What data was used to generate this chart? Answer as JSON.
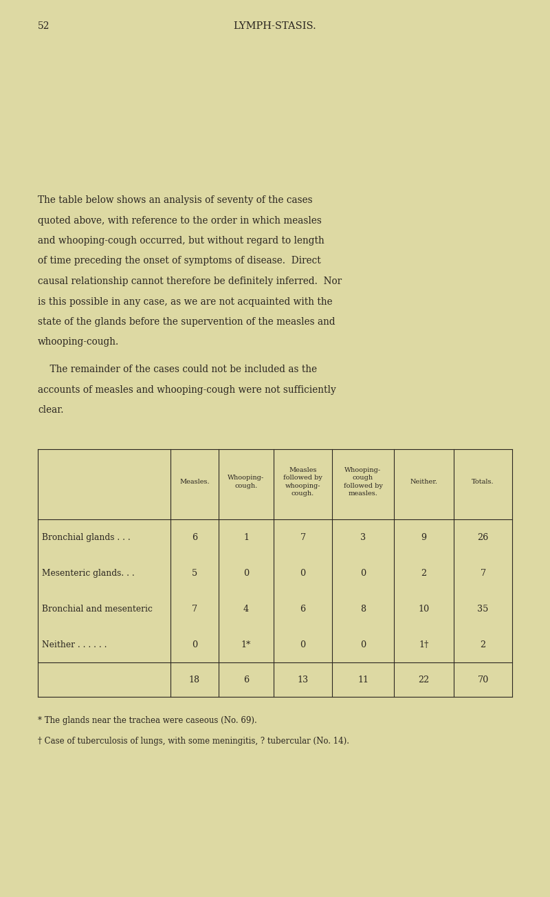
{
  "bg_color": "#ddd9a3",
  "page_number": "52",
  "header_title": "LYMPH-STASIS.",
  "body_paragraphs": [
    [
      "The table below shows an analysis of seventy of the cases",
      "quoted above, with reference to the order in which measles",
      "and whooping-cough occurred, but without regard to length",
      "of time preceding the onset of symptoms of disease.  Direct",
      "causal relationship cannot therefore be definitely inferred.  Nor",
      "is this possible in any case, as we are not acquainted with the",
      "state of the glands before the supervention of the measles and",
      "whooping-cough."
    ],
    [
      "    The remainder of the cases could not be included as the",
      "accounts of measles and whooping-cough were not sufficiently",
      "clear."
    ]
  ],
  "col_headers": [
    "Measles.",
    "Whooping-\ncough.",
    "Measles\nfollowed by\nwhooping-\ncough.",
    "Whooping-\ncough\nfollowed by\nmeasles.",
    "Neither.",
    "Totals."
  ],
  "row_labels": [
    "Bronchial glands . . .",
    "Mesenteric glands. . .",
    "Bronchial and mesenteric",
    "Neither . . . . . ."
  ],
  "table_data": [
    [
      "6",
      "1",
      "7",
      "3",
      "9",
      "26"
    ],
    [
      "5",
      "0",
      "0",
      "0",
      "2",
      "7"
    ],
    [
      "7",
      "4",
      "6",
      "8",
      "10",
      "35"
    ],
    [
      "0",
      "1*",
      "0",
      "0",
      "1†",
      "2"
    ]
  ],
  "totals_row": [
    "18",
    "6",
    "13",
    "11",
    "22",
    "70"
  ],
  "footnote1": "* The glands near the trachea were caseous (No. 69).",
  "footnote2": "† Case of tuberculosis of lungs, with some meningitis, ? tubercular (No. 14).",
  "text_color": "#2a2520",
  "line_color": "#2a2520",
  "fig_width": 8.0,
  "fig_height": 13.04,
  "dpi": 100
}
